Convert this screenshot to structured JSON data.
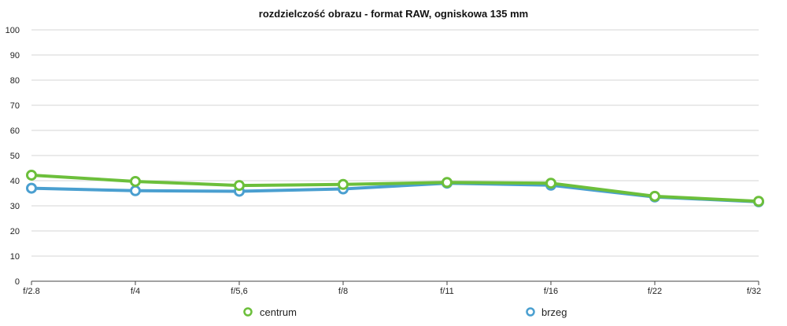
{
  "chart_data": {
    "type": "line",
    "title": "rozdzielczość obrazu - format RAW, ogniskowa 135 mm",
    "xlabel": "",
    "ylabel": "",
    "categories": [
      "f/2.8",
      "f/4",
      "f/5,6",
      "f/8",
      "f/11",
      "f/16",
      "f/22",
      "f/32"
    ],
    "ylim": [
      0,
      100
    ],
    "yticks": [
      0,
      10,
      20,
      30,
      40,
      50,
      60,
      70,
      80,
      90,
      100
    ],
    "grid": true,
    "legend": "bottom",
    "series": [
      {
        "name": "brzeg",
        "color": "#4a9fd0",
        "values": [
          37.0,
          36.0,
          35.8,
          36.7,
          39.0,
          38.2,
          33.5,
          31.6
        ]
      },
      {
        "name": "centrum",
        "color": "#6cbf3b",
        "values": [
          42.2,
          39.7,
          38.1,
          38.5,
          39.3,
          39.0,
          33.8,
          31.8
        ]
      }
    ],
    "legend_order": [
      "centrum",
      "brzeg"
    ]
  }
}
